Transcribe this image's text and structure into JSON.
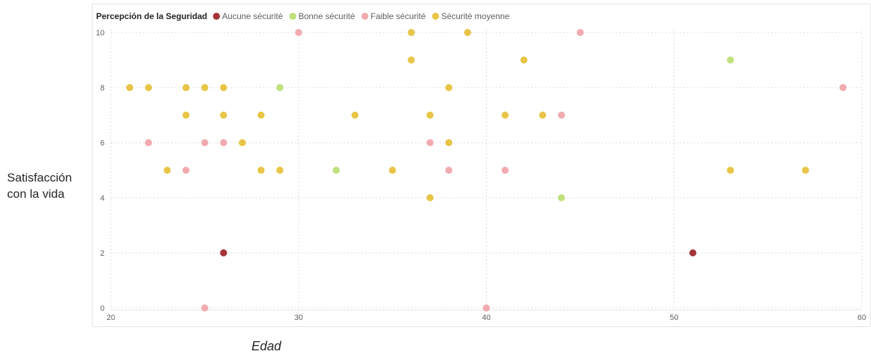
{
  "y_axis_label_lines": [
    "Satisfacción",
    "con la vida"
  ],
  "chart_data": {
    "type": "scatter",
    "xlabel": "Edad",
    "ylabel": "Satisfacción con la vida",
    "xlim": [
      20,
      60
    ],
    "ylim": [
      0,
      10
    ],
    "x_ticks": [
      20,
      30,
      40,
      50,
      60
    ],
    "y_ticks": [
      0,
      2,
      4,
      6,
      8,
      10
    ],
    "grid": "dotted",
    "legend": {
      "title": "Percepción de la Seguridad",
      "placement": "top-left"
    },
    "series": [
      {
        "name": "Aucune sécurité",
        "color": "#a4343a",
        "points": [
          [
            26,
            2
          ],
          [
            51,
            2
          ]
        ]
      },
      {
        "name": "Bonne sécurité",
        "color": "#bfe07a",
        "points": [
          [
            29,
            8
          ],
          [
            32,
            5
          ],
          [
            44,
            4
          ],
          [
            53,
            9
          ]
        ]
      },
      {
        "name": "Faible sécurité",
        "color": "#f1aab0",
        "points": [
          [
            22,
            6
          ],
          [
            24,
            5
          ],
          [
            25,
            6
          ],
          [
            25,
            0
          ],
          [
            26,
            6
          ],
          [
            30,
            10
          ],
          [
            37,
            6
          ],
          [
            38,
            5
          ],
          [
            40,
            0
          ],
          [
            41,
            5
          ],
          [
            44,
            7
          ],
          [
            45,
            10
          ],
          [
            59,
            8
          ]
        ]
      },
      {
        "name": "Sécurité moyenne",
        "color": "#e8c547",
        "points": [
          [
            21,
            8
          ],
          [
            22,
            8
          ],
          [
            23,
            5
          ],
          [
            24,
            8
          ],
          [
            24,
            7
          ],
          [
            25,
            8
          ],
          [
            26,
            8
          ],
          [
            26,
            7
          ],
          [
            27,
            6
          ],
          [
            28,
            7
          ],
          [
            28,
            5
          ],
          [
            29,
            5
          ],
          [
            33,
            7
          ],
          [
            35,
            5
          ],
          [
            36,
            10
          ],
          [
            36,
            9
          ],
          [
            37,
            7
          ],
          [
            37,
            4
          ],
          [
            38,
            8
          ],
          [
            38,
            6
          ],
          [
            39,
            10
          ],
          [
            41,
            7
          ],
          [
            42,
            9
          ],
          [
            43,
            7
          ],
          [
            53,
            5
          ],
          [
            57,
            5
          ]
        ]
      }
    ]
  }
}
